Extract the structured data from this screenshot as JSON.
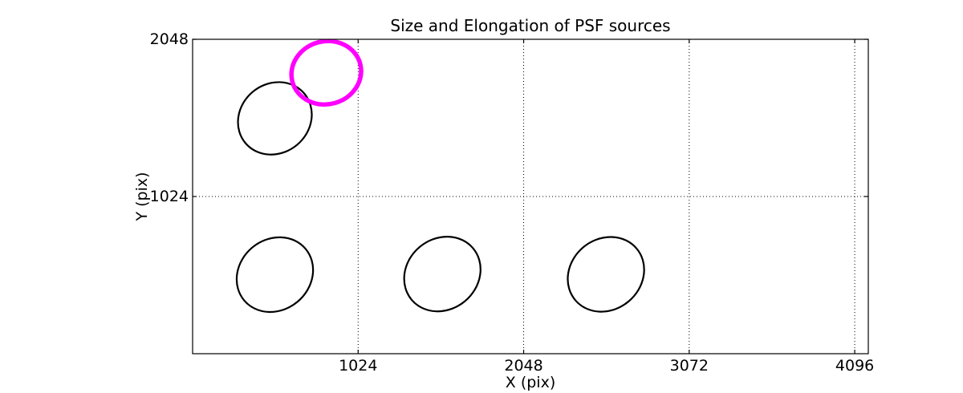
{
  "figure": {
    "background": "#ffffff",
    "axis_color": "#000000",
    "grid_color": "#000000"
  },
  "chart_data": {
    "type": "scatter",
    "title": "Size and Elongation of PSF sources",
    "xlabel": "X (pix)",
    "ylabel": "Y (pix)",
    "xlim": [
      0,
      4180
    ],
    "ylim": [
      0,
      2048
    ],
    "xticks": [
      1024,
      2048,
      3072,
      4096
    ],
    "yticks": [
      1024,
      2048
    ],
    "grid": true,
    "grid_style": "dotted",
    "legend": false,
    "ellipses": [
      {
        "x": 509,
        "y": 1533,
        "a": 238,
        "b": 225,
        "angle": -40,
        "color": "#000000",
        "lw": 2.2
      },
      {
        "x": 509,
        "y": 515,
        "a": 248,
        "b": 230,
        "angle": -40,
        "color": "#000000",
        "lw": 2.2
      },
      {
        "x": 1545,
        "y": 519,
        "a": 248,
        "b": 230,
        "angle": -40,
        "color": "#000000",
        "lw": 2.2
      },
      {
        "x": 2557,
        "y": 517,
        "a": 248,
        "b": 230,
        "angle": -40,
        "color": "#000000",
        "lw": 2.2
      },
      {
        "x": 827,
        "y": 1830,
        "a": 217,
        "b": 205,
        "angle": -15,
        "color": "#ff00ff",
        "lw": 5.5
      }
    ]
  }
}
